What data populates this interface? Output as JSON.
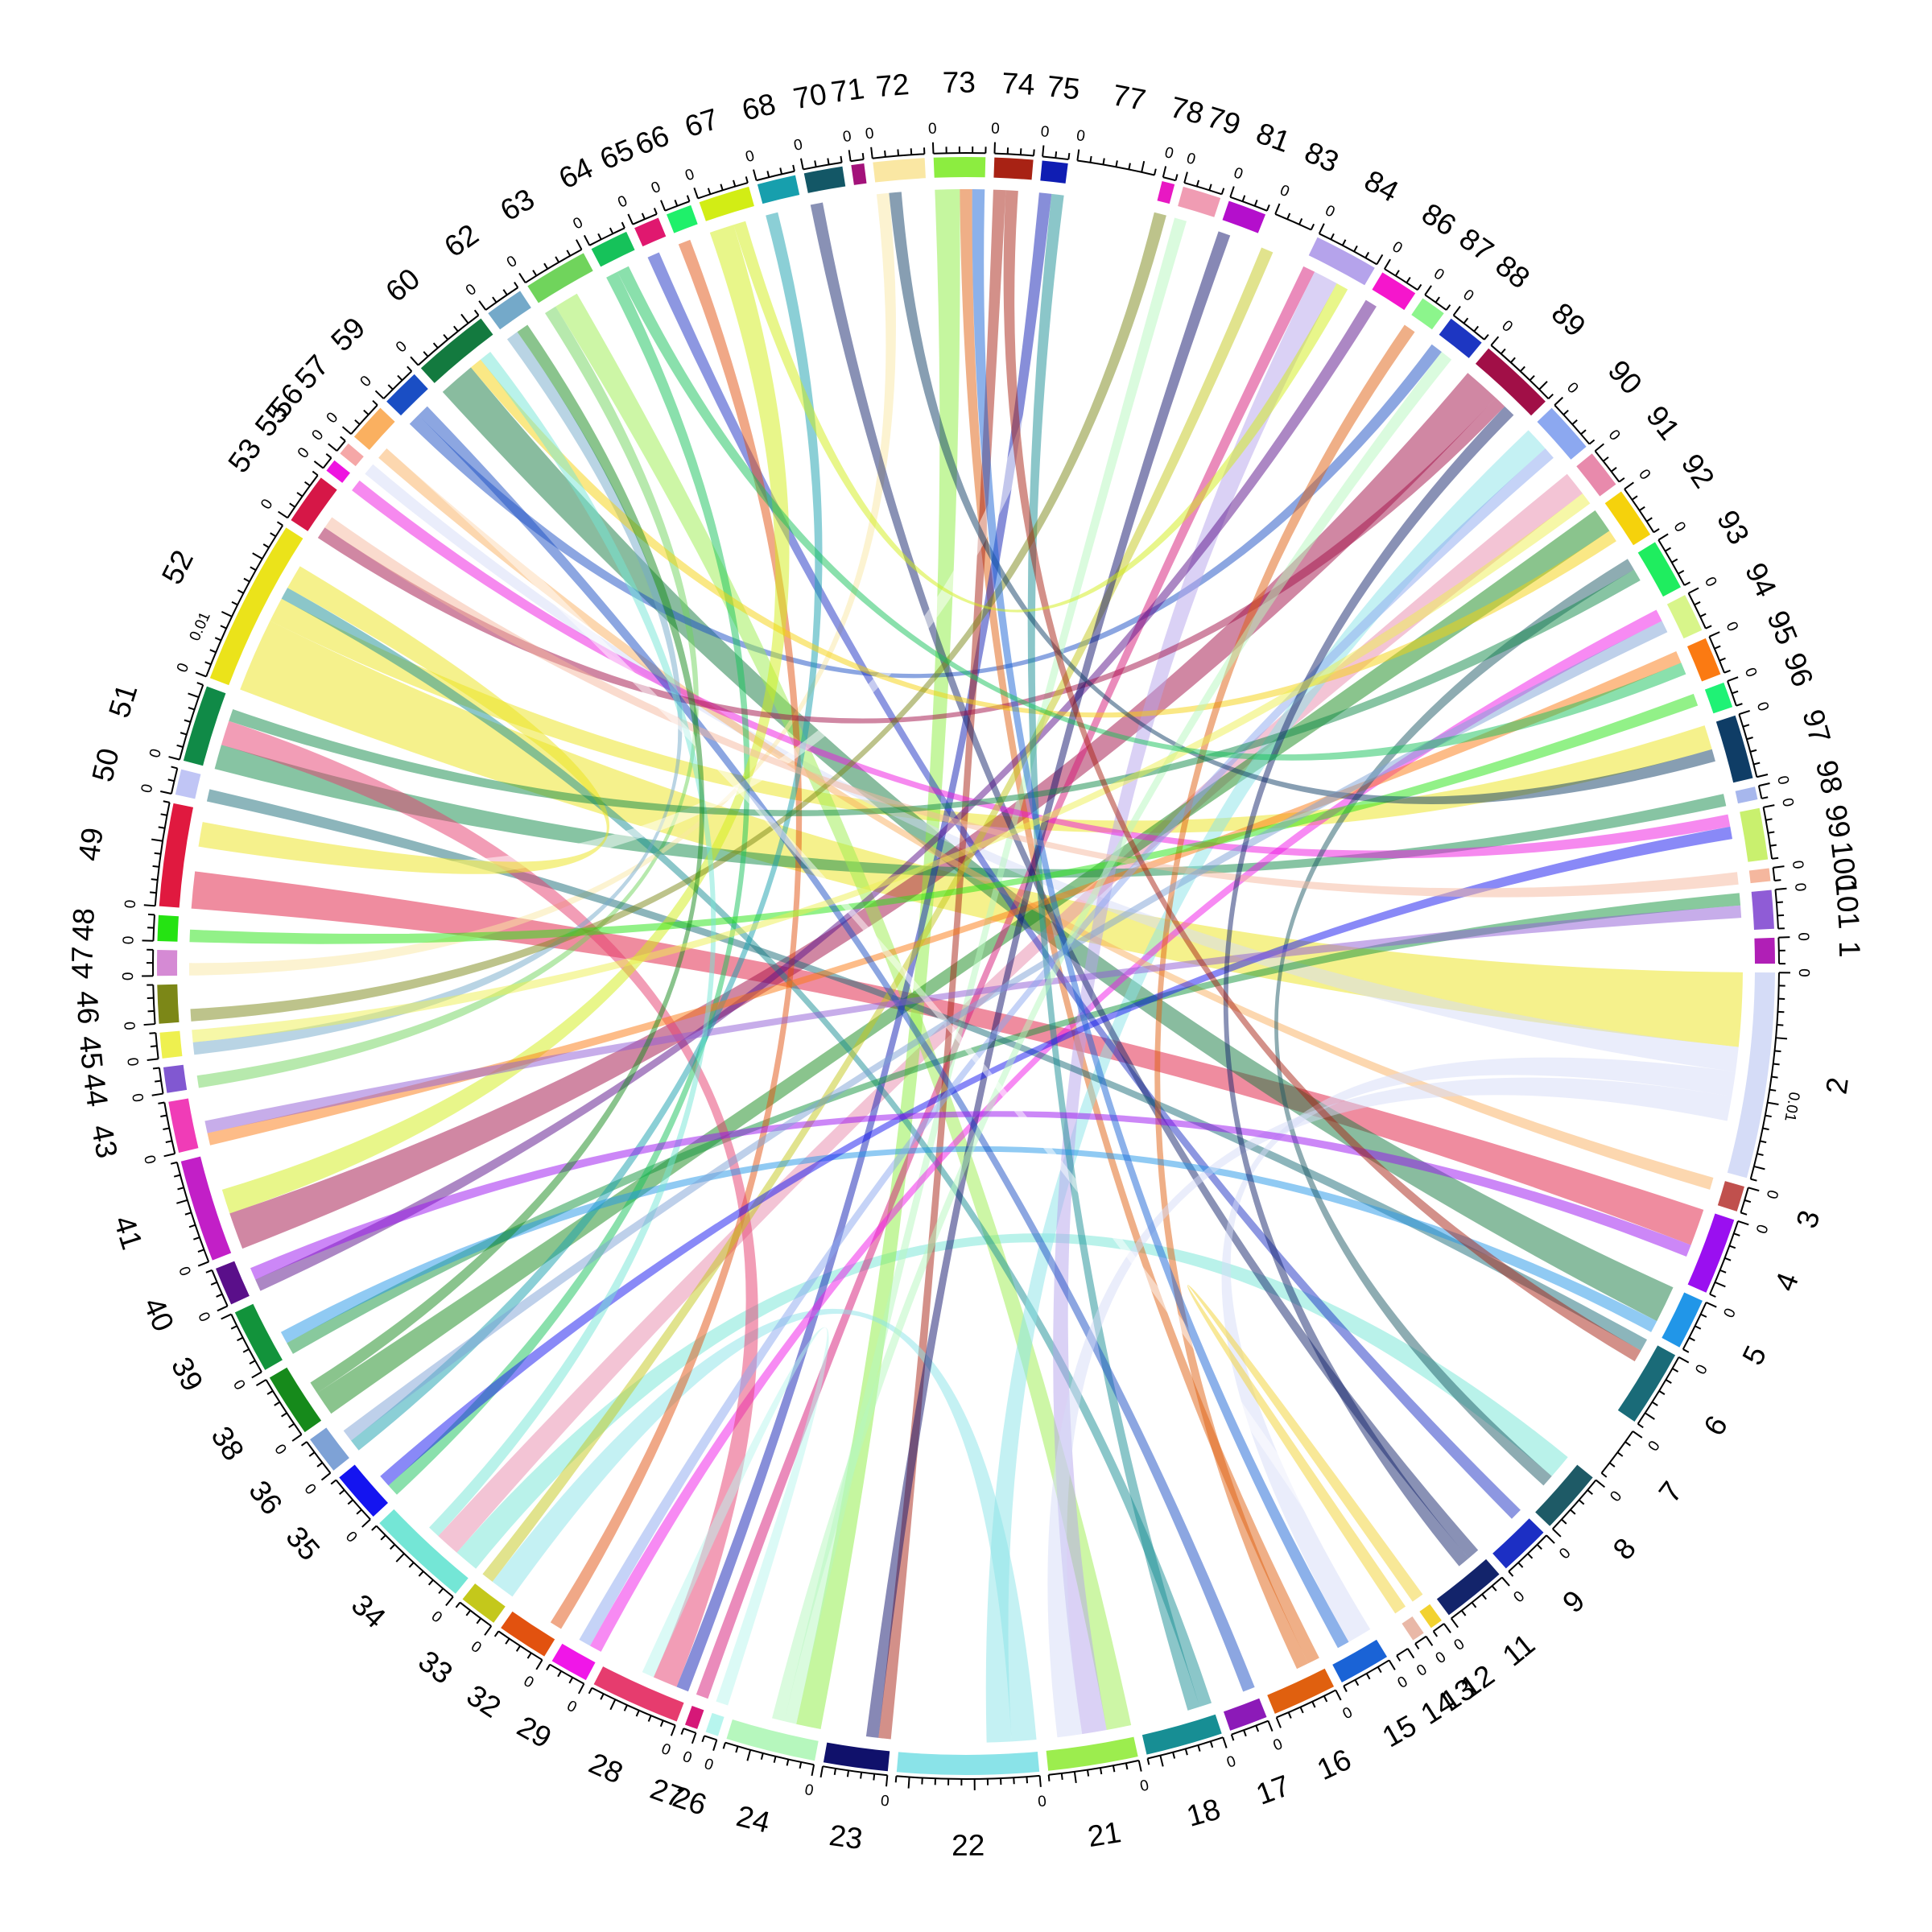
{
  "chart_data": {
    "type": "chord",
    "title": "",
    "grid": false,
    "legend": "none",
    "sectors": [
      {
        "name": "1",
        "value": 0.002,
        "color": "#b01fb6"
      },
      {
        "name": "2",
        "value": 0.016,
        "color": "#d5dcf7"
      },
      {
        "name": "3",
        "value": 0.002,
        "color": "#c0504d"
      },
      {
        "name": "4",
        "value": 0.006,
        "color": "#9a0ff0"
      },
      {
        "name": "5",
        "value": 0.004,
        "color": "#2196e8"
      },
      {
        "name": "6",
        "value": 0.006,
        "color": "#1a6b78"
      },
      {
        "name": "7",
        "value": 0.004,
        "color": "#ffffff"
      },
      {
        "name": "8",
        "value": 0.005,
        "color": "#1e5a66"
      },
      {
        "name": "9",
        "value": 0.004,
        "color": "#1c2fc4"
      },
      {
        "name": "11",
        "value": 0.005,
        "color": "#13246b"
      },
      {
        "name": "12",
        "value": 0.001,
        "color": "#f2d230"
      },
      {
        "name": "13",
        "value": 0.001,
        "color": "#e9b8a7"
      },
      {
        "name": "14",
        "value": 0.001,
        "color": "#ffffff"
      },
      {
        "name": "15",
        "value": 0.004,
        "color": "#1a63d6"
      },
      {
        "name": "16",
        "value": 0.005,
        "color": "#e0600f"
      },
      {
        "name": "17",
        "value": 0.003,
        "color": "#8c1ab8"
      },
      {
        "name": "18",
        "value": 0.006,
        "color": "#178e94"
      },
      {
        "name": "21",
        "value": 0.007,
        "color": "#9ced4e"
      },
      {
        "name": "22",
        "value": 0.011,
        "color": "#8ae3e8"
      },
      {
        "name": "23",
        "value": 0.005,
        "color": "#10116b"
      },
      {
        "name": "24",
        "value": 0.007,
        "color": "#b6f7bd"
      },
      {
        "name": "26",
        "value": 0.001,
        "color": "#b7f5ee"
      },
      {
        "name": "27",
        "value": 0.001,
        "color": "#d61878"
      },
      {
        "name": "28",
        "value": 0.007,
        "color": "#e63c6e"
      },
      {
        "name": "29",
        "value": 0.003,
        "color": "#f016e8"
      },
      {
        "name": "32",
        "value": 0.004,
        "color": "#e2520f"
      },
      {
        "name": "33",
        "value": 0.003,
        "color": "#c4c81b"
      },
      {
        "name": "34",
        "value": 0.008,
        "color": "#74e6d6"
      },
      {
        "name": "35",
        "value": 0.004,
        "color": "#1414f0"
      },
      {
        "name": "36",
        "value": 0.003,
        "color": "#7ea2d6"
      },
      {
        "name": "38",
        "value": 0.005,
        "color": "#168a1b"
      },
      {
        "name": "39",
        "value": 0.005,
        "color": "#12933b"
      },
      {
        "name": "40",
        "value": 0.003,
        "color": "#5a0f8a"
      },
      {
        "name": "41",
        "value": 0.008,
        "color": "#c21fc7"
      },
      {
        "name": "43",
        "value": 0.004,
        "color": "#f03cb7"
      },
      {
        "name": "44",
        "value": 0.002,
        "color": "#8158d1"
      },
      {
        "name": "45",
        "value": 0.002,
        "color": "#eef04f"
      },
      {
        "name": "46",
        "value": 0.003,
        "color": "#7c8717"
      },
      {
        "name": "47",
        "value": 0.002,
        "color": "#d58ad4"
      },
      {
        "name": "48",
        "value": 0.002,
        "color": "#25e312"
      },
      {
        "name": "49",
        "value": 0.008,
        "color": "#e0193f"
      },
      {
        "name": "50",
        "value": 0.002,
        "color": "#c0c5f5"
      },
      {
        "name": "51",
        "value": 0.006,
        "color": "#108a47"
      },
      {
        "name": "52",
        "value": 0.013,
        "color": "#ebe31a"
      },
      {
        "name": "53",
        "value": 0.004,
        "color": "#d61747"
      },
      {
        "name": "55",
        "value": 0.001,
        "color": "#ee14e0"
      },
      {
        "name": "56",
        "value": 0.001,
        "color": "#f5a7a7"
      },
      {
        "name": "57",
        "value": 0.003,
        "color": "#fab060"
      },
      {
        "name": "59",
        "value": 0.003,
        "color": "#1a4ec4"
      },
      {
        "name": "60",
        "value": 0.006,
        "color": "#137a3f"
      },
      {
        "name": "62",
        "value": 0.003,
        "color": "#74a9c9"
      },
      {
        "name": "63",
        "value": 0.005,
        "color": "#70d45c"
      },
      {
        "name": "64",
        "value": 0.003,
        "color": "#16c25a"
      },
      {
        "name": "65",
        "value": 0.002,
        "color": "#e0186f"
      },
      {
        "name": "66",
        "value": 0.002,
        "color": "#1ff06a"
      },
      {
        "name": "67",
        "value": 0.004,
        "color": "#d2ed15"
      },
      {
        "name": "68",
        "value": 0.003,
        "color": "#179fad"
      },
      {
        "name": "70",
        "value": 0.003,
        "color": "#135766"
      },
      {
        "name": "71",
        "value": 0.001,
        "color": "#a3127a"
      },
      {
        "name": "72",
        "value": 0.004,
        "color": "#fae7a3"
      },
      {
        "name": "73",
        "value": 0.004,
        "color": "#8ced40"
      },
      {
        "name": "74",
        "value": 0.003,
        "color": "#a82214"
      },
      {
        "name": "75",
        "value": 0.002,
        "color": "#0f1db3"
      },
      {
        "name": "77",
        "value": 0.006,
        "color": "#ffffff"
      },
      {
        "name": "78",
        "value": 0.001,
        "color": "#e818c3"
      },
      {
        "name": "79",
        "value": 0.003,
        "color": "#f09cb3"
      },
      {
        "name": "81",
        "value": 0.003,
        "color": "#b40fcc"
      },
      {
        "name": "83",
        "value": 0.003,
        "color": "#ffffff"
      },
      {
        "name": "84",
        "value": 0.005,
        "color": "#b5a3eb"
      },
      {
        "name": "86",
        "value": 0.003,
        "color": "#f516cc"
      },
      {
        "name": "87",
        "value": 0.002,
        "color": "#8cf58c"
      },
      {
        "name": "88",
        "value": 0.003,
        "color": "#1d36c2"
      },
      {
        "name": "89",
        "value": 0.006,
        "color": "#a10f47"
      },
      {
        "name": "90",
        "value": 0.004,
        "color": "#8ca8f0"
      },
      {
        "name": "91",
        "value": 0.003,
        "color": "#e88aac"
      },
      {
        "name": "92",
        "value": 0.004,
        "color": "#f5d20c"
      },
      {
        "name": "93",
        "value": 0.004,
        "color": "#1fed5f"
      },
      {
        "name": "94",
        "value": 0.003,
        "color": "#d8f58a"
      },
      {
        "name": "95",
        "value": 0.003,
        "color": "#fb7a12"
      },
      {
        "name": "96",
        "value": 0.002,
        "color": "#1ff275"
      },
      {
        "name": "97",
        "value": 0.005,
        "color": "#0f3d66"
      },
      {
        "name": "98",
        "value": 0.001,
        "color": "#a7b7ed"
      },
      {
        "name": "99",
        "value": 0.004,
        "color": "#c9f06e"
      },
      {
        "name": "100",
        "value": 0.001,
        "color": "#f5b79e"
      },
      {
        "name": "101",
        "value": 0.003,
        "color": "#8f5cd6"
      }
    ],
    "tick_step": 0.001,
    "labelled_ticks": {
      "2": [
        0,
        0.01
      ],
      "51": [
        0,
        0.01
      ]
    },
    "links": [
      [
        52,
        2,
        0.006
      ],
      [
        52,
        97,
        0.002
      ],
      [
        49,
        4,
        0.003
      ],
      [
        34,
        8,
        0.002
      ],
      [
        60,
        5,
        0.003
      ],
      [
        89,
        41,
        0.003
      ],
      [
        91,
        34,
        0.002
      ],
      [
        73,
        24,
        0.002
      ],
      [
        63,
        44,
        0.001
      ],
      [
        51,
        98,
        0.002
      ],
      [
        2,
        56,
        0.002
      ],
      [
        59,
        88,
        0.001
      ],
      [
        21,
        63,
        0.002
      ],
      [
        16,
        73,
        0.001
      ],
      [
        38,
        92,
        0.002
      ],
      [
        27,
        84,
        0.001
      ],
      [
        75,
        28,
        0.001
      ],
      [
        24,
        79,
        0.001
      ],
      [
        72,
        47,
        0.001
      ],
      [
        74,
        23,
        0.001
      ],
      [
        22,
        33,
        0.002
      ],
      [
        18,
        52,
        0.001
      ],
      [
        22,
        90,
        0.002
      ],
      [
        29,
        94,
        0.001
      ],
      [
        57,
        3,
        0.001
      ],
      [
        39,
        101,
        0.001
      ],
      [
        84,
        21,
        0.002
      ],
      [
        9,
        65,
        0.001
      ],
      [
        11,
        70,
        0.001
      ],
      [
        6,
        50,
        0.001
      ],
      [
        32,
        66,
        0.001
      ],
      [
        28,
        51,
        0.002
      ],
      [
        40,
        86,
        0.001
      ],
      [
        55,
        99,
        0.001
      ],
      [
        62,
        45,
        0.001
      ],
      [
        64,
        35,
        0.001
      ],
      [
        67,
        41,
        0.002
      ],
      [
        68,
        36,
        0.001
      ],
      [
        77,
        49,
        0.002
      ],
      [
        89,
        53,
        0.001
      ],
      [
        92,
        60,
        0.001
      ],
      [
        95,
        43,
        0.001
      ],
      [
        2,
        15,
        0.002
      ],
      [
        16,
        87,
        0.001
      ],
      [
        33,
        83,
        0.001
      ],
      [
        18,
        75,
        0.001
      ],
      [
        5,
        39,
        0.001
      ],
      [
        8,
        93,
        0.001
      ],
      [
        23,
        81,
        0.001
      ],
      [
        46,
        78,
        0.001
      ],
      [
        48,
        96,
        0.001
      ],
      [
        59,
        17,
        0.001
      ],
      [
        35,
        99,
        0.001
      ],
      [
        27,
        71,
        0.001
      ],
      [
        100,
        53,
        0.001
      ],
      [
        101,
        43,
        0.001
      ],
      [
        90,
        29,
        0.001
      ],
      [
        97,
        72,
        0.001
      ],
      [
        34,
        60,
        0.001
      ],
      [
        24,
        88,
        0.001
      ],
      [
        2,
        21,
        0.002
      ],
      [
        52,
        49,
        0.002
      ],
      [
        51,
        93,
        0.001
      ],
      [
        4,
        40,
        0.001
      ],
      [
        12,
        13,
        0.001
      ],
      [
        14,
        57,
        0.001
      ],
      [
        26,
        28,
        0.001
      ],
      [
        36,
        94,
        0.001
      ],
      [
        38,
        62,
        0.001
      ],
      [
        11,
        89,
        0.001
      ],
      [
        15,
        73,
        0.001
      ],
      [
        45,
        91,
        0.001
      ],
      [
        64,
        95,
        0.001
      ],
      [
        74,
        6,
        0.001
      ],
      [
        67,
        84,
        0.001
      ]
    ]
  }
}
